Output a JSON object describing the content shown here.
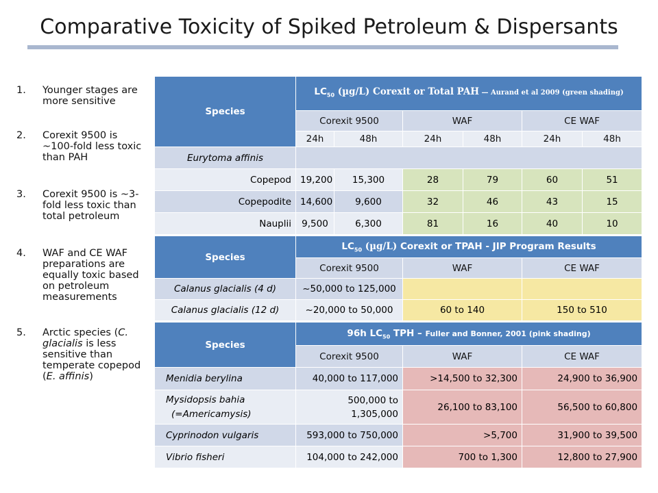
{
  "title": "Comparative Toxicity of Spiked Petroleum & Dispersants",
  "notes": [
    {
      "num": "1.",
      "text": "Younger stages are more sensitive"
    },
    {
      "num": "2.",
      "text": "Corexit 9500 is ~100-fold less toxic than PAH"
    },
    {
      "num": "3.",
      "text": "Corexit 9500 is ~3-fold less toxic than total petroleum"
    },
    {
      "num": "4.",
      "text": "WAF and CE WAF preparations are equally toxic based on petroleum measurements"
    },
    {
      "num": "5.",
      "pre": "Arctic species (",
      "it1": "C. glacialis",
      "mid": " is less sensitive than temperate copepod (",
      "it2": "E. affinis",
      "post": ")"
    }
  ],
  "table1": {
    "species_header": "Species",
    "lc_prefix": "LC",
    "lc_sub": "50",
    "unit": " (µg/L) ",
    "main": "Corexit or Total PAH",
    "cite": " — Aurand et al 2009   (green shading)",
    "groups": [
      "Corexit 9500",
      "WAF",
      "CE WAF"
    ],
    "times": [
      "24h",
      "48h",
      "24h",
      "48h",
      "24h",
      "48h"
    ],
    "section_label": "Eurytoma affinis",
    "rows": [
      {
        "label": "Copepod",
        "values": [
          "19,200",
          "15,300",
          "28",
          "79",
          "60",
          "51"
        ]
      },
      {
        "label": "Copepodite",
        "values": [
          "14,600",
          "9,600",
          "32",
          "46",
          "43",
          "15"
        ]
      },
      {
        "label": "Nauplii",
        "values": [
          "9,500",
          "6,300",
          "81",
          "16",
          "40",
          "10"
        ]
      }
    ]
  },
  "table2": {
    "species_header": "Species",
    "lc_prefix": "LC",
    "lc_sub": "50",
    "unit": " (µg/L) ",
    "main": "Corexit or TPAH -  JIP Program Results",
    "groups": [
      "Corexit 9500",
      "WAF",
      "CE WAF"
    ],
    "rows": [
      {
        "label": "Calanus glacialis (4 d)",
        "values": [
          "~50,000 to 125,000",
          "",
          ""
        ]
      },
      {
        "label": "Calanus glacialis (12 d)",
        "values": [
          "~20,000 to 50,000",
          "60 to 140",
          "150 to 510"
        ]
      }
    ]
  },
  "table3": {
    "species_header": "Species",
    "prefix": "96h LC",
    "lc_sub": "50",
    "main": "  TPH – ",
    "cite": "Fuller and Bonner, 2001 (pink shading)",
    "groups": [
      "Corexit 9500",
      "WAF",
      "CE WAF"
    ],
    "rows": [
      {
        "label": "Menidia berylina",
        "values": [
          "40,000 to 117,000",
          ">14,500 to 32,300",
          "24,900 to 36,900"
        ]
      },
      {
        "label": "Mysidopsis bahia",
        "label2": "(=Americamysis)",
        "v0a": "500,000 to",
        "v0b": "1,305,000",
        "values": [
          "",
          "26,100 to 83,100",
          "56,500 to 60,800"
        ]
      },
      {
        "label": "Cyprinodon vulgaris",
        "values": [
          "593,000 to 750,000",
          ">5,700",
          "31,900 to 39,500"
        ]
      },
      {
        "label": "Vibrio fisheri",
        "values": [
          "104,000 to 242,000",
          "700 to 1,300",
          "12,800 to 27,900"
        ]
      }
    ]
  }
}
